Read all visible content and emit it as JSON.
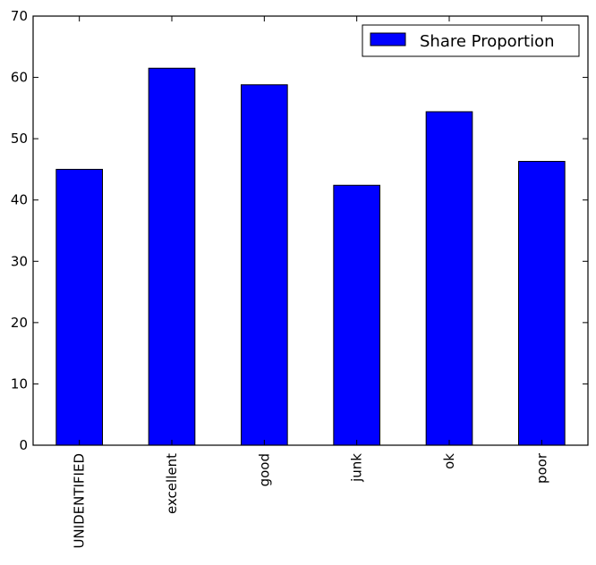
{
  "chart_data": {
    "type": "bar",
    "categories": [
      "UNIDENTIFIED",
      "excellent",
      "good",
      "junk",
      "ok",
      "poor"
    ],
    "series": [
      {
        "name": "Share Proportion",
        "values": [
          45.0,
          61.5,
          58.8,
          42.4,
          54.4,
          46.3
        ],
        "color": "#0000ff"
      }
    ],
    "ylim": [
      0,
      70
    ],
    "yticks": [
      0,
      10,
      20,
      30,
      40,
      50,
      60,
      70
    ],
    "grid": false,
    "legend_position": "top-right"
  }
}
